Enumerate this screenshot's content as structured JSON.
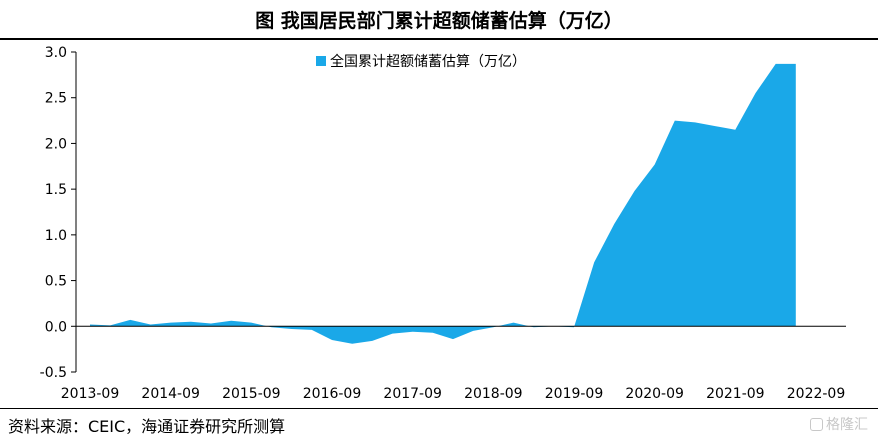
{
  "header": {
    "title": "图  我国居民部门累计超额储蓄估算（万亿）"
  },
  "footer": {
    "source": "资料来源：CEIC，海通证券研究所测算",
    "watermark": "格隆汇"
  },
  "colors": {
    "fill": "#1aa8e8",
    "axis": "#000000"
  },
  "chart_data": {
    "type": "area",
    "title": "图  我国居民部门累计超额储蓄估算（万亿）",
    "legend": {
      "entries": [
        "全国累计超额储蓄估算（万亿）"
      ],
      "placement": "top-center"
    },
    "xlabel": "",
    "ylabel": "",
    "ylim": [
      -0.5,
      3.0
    ],
    "yticks": [
      "3.0",
      "2.5",
      "2.0",
      "1.5",
      "1.0",
      "0.5",
      "0.0",
      "-0.5"
    ],
    "xticks": [
      "2013-09",
      "2014-09",
      "2015-09",
      "2016-09",
      "2017-09",
      "2018-09",
      "2019-09",
      "2020-09",
      "2021-09",
      "2022-09"
    ],
    "grid": false,
    "series": [
      {
        "name": "全国累计超额储蓄估算（万亿）",
        "color": "#1aa8e8",
        "points": [
          [
            "2013-09",
            0.02
          ],
          [
            "2013-12",
            0.01
          ],
          [
            "2014-03",
            0.07
          ],
          [
            "2014-06",
            0.02
          ],
          [
            "2014-09",
            0.04
          ],
          [
            "2014-12",
            0.05
          ],
          [
            "2015-03",
            0.03
          ],
          [
            "2015-06",
            0.06
          ],
          [
            "2015-09",
            0.04
          ],
          [
            "2015-12",
            -0.01
          ],
          [
            "2016-03",
            -0.03
          ],
          [
            "2016-06",
            -0.04
          ],
          [
            "2016-09",
            -0.15
          ],
          [
            "2016-12",
            -0.19
          ],
          [
            "2017-03",
            -0.16
          ],
          [
            "2017-06",
            -0.08
          ],
          [
            "2017-09",
            -0.06
          ],
          [
            "2017-12",
            -0.07
          ],
          [
            "2018-03",
            -0.14
          ],
          [
            "2018-06",
            -0.05
          ],
          [
            "2018-09",
            -0.01
          ],
          [
            "2018-12",
            0.04
          ],
          [
            "2019-03",
            -0.01
          ],
          [
            "2019-06",
            0.0
          ],
          [
            "2019-09",
            -0.01
          ],
          [
            "2019-12",
            0.7
          ],
          [
            "2020-03",
            1.12
          ],
          [
            "2020-06",
            1.48
          ],
          [
            "2020-09",
            1.77
          ],
          [
            "2020-12",
            2.25
          ],
          [
            "2021-03",
            2.23
          ],
          [
            "2021-06",
            2.19
          ],
          [
            "2021-09",
            2.15
          ],
          [
            "2021-12",
            2.55
          ],
          [
            "2022-03",
            2.87
          ],
          [
            "2022-06",
            2.87
          ]
        ]
      }
    ]
  }
}
